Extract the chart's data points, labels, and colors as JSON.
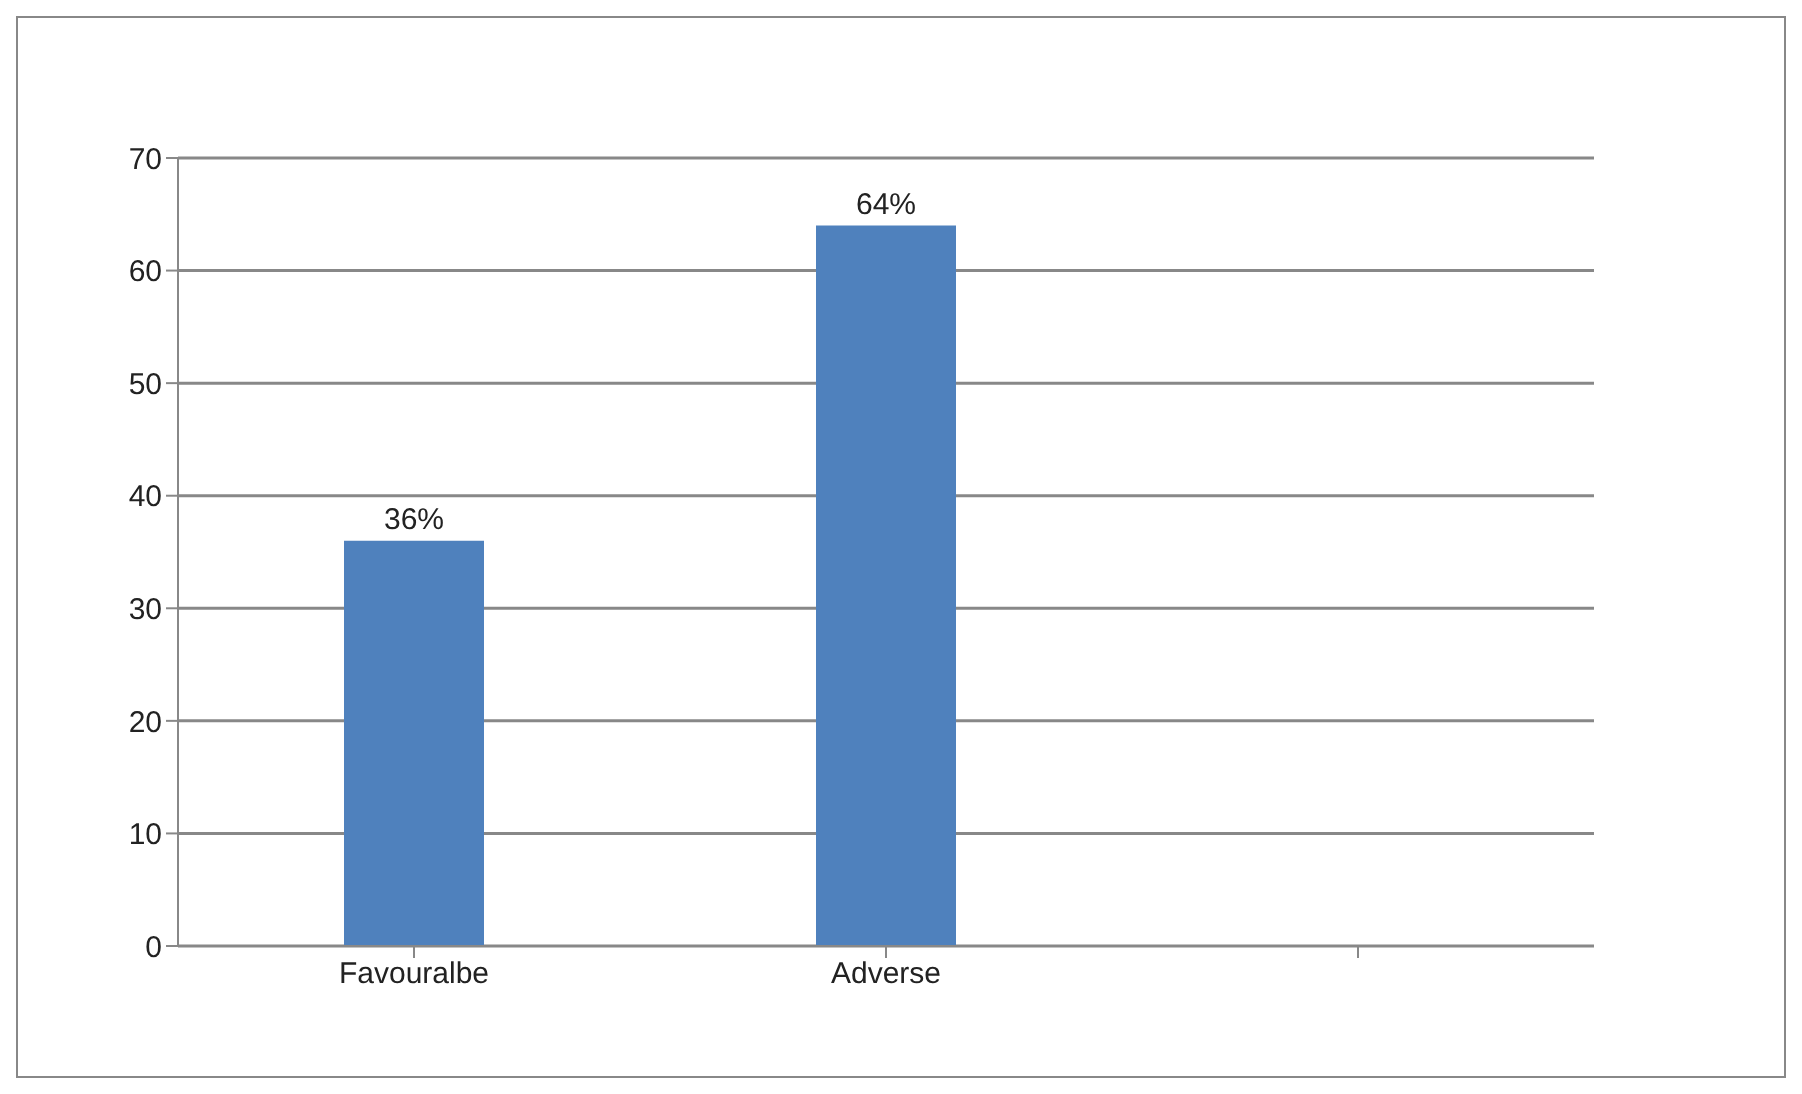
{
  "chart_data": {
    "type": "bar",
    "categories": [
      "Favouralbe",
      "Adverse",
      null
    ],
    "values": [
      36,
      64,
      null
    ],
    "value_labels": [
      "36%",
      "64%",
      null
    ],
    "color": "#4f81bd",
    "ylim": [
      0,
      70
    ],
    "yticks": [
      0,
      10,
      20,
      30,
      40,
      50,
      60,
      70
    ],
    "grid": "y"
  }
}
